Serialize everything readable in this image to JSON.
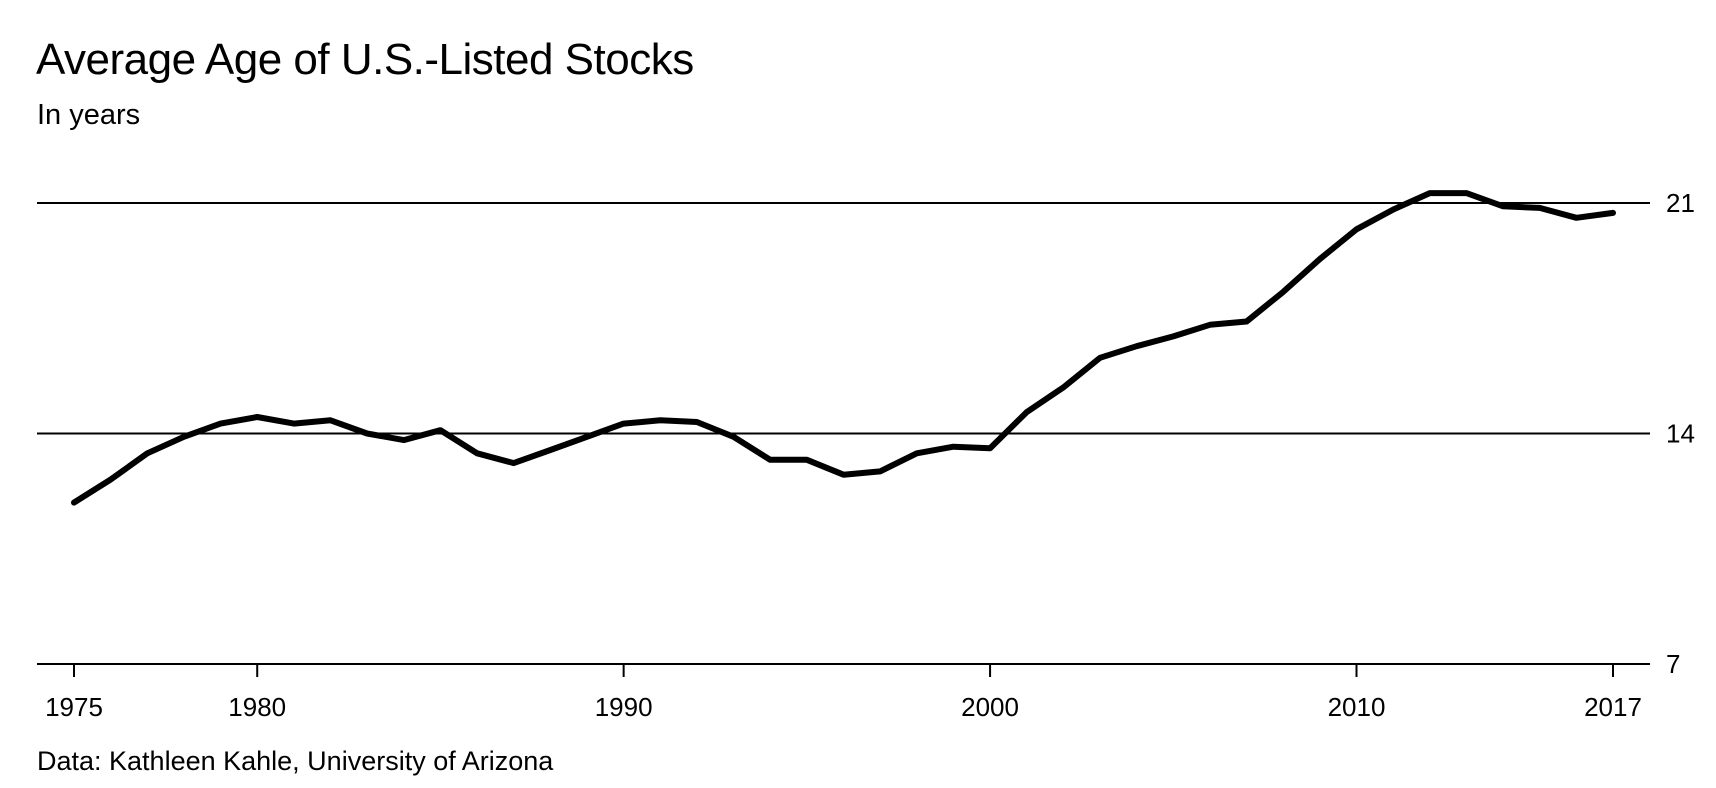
{
  "header": {
    "title": "Average Age of U.S.-Listed Stocks",
    "subtitle": "In years"
  },
  "footer": {
    "source": "Data: Kathleen Kahle, University of Arizona"
  },
  "colors": {
    "line": "#000000",
    "grid": "#000000",
    "background": "#ffffff"
  },
  "chart_data": {
    "type": "line",
    "title": "Average Age of U.S.-Listed Stocks",
    "subtitle": "In years",
    "xlabel": "",
    "ylabel": "",
    "xlim": [
      1975,
      2017
    ],
    "ylim": [
      7,
      21
    ],
    "x_ticks": [
      1975,
      1980,
      1990,
      2000,
      2010,
      2017
    ],
    "y_ticks": [
      21,
      14,
      7
    ],
    "y_axis_side": "right",
    "grid": "horizontal",
    "legend": "none",
    "series": [
      {
        "x": [
          1975,
          1976,
          1977,
          1978,
          1979,
          1980,
          1981,
          1982,
          1983,
          1984,
          1985,
          1986,
          1987,
          1988,
          1989,
          1990,
          1991,
          1992,
          1993,
          1994,
          1995,
          1996,
          1997,
          1998,
          1999,
          2000,
          2001,
          2002,
          2003,
          2004,
          2005,
          2006,
          2007,
          2008,
          2009,
          2010,
          2011,
          2012,
          2013,
          2014,
          2015,
          2016,
          2017
        ],
        "values": [
          11.9,
          12.6,
          13.4,
          13.9,
          14.3,
          14.5,
          14.3,
          14.4,
          14.0,
          13.8,
          14.1,
          13.4,
          13.1,
          13.5,
          13.9,
          14.3,
          14.4,
          14.35,
          13.9,
          13.2,
          13.2,
          12.75,
          12.85,
          13.4,
          13.6,
          13.55,
          14.65,
          15.4,
          16.3,
          16.65,
          16.95,
          17.3,
          17.4,
          18.3,
          19.3,
          20.2,
          20.8,
          21.3,
          21.3,
          20.9,
          20.85,
          20.55,
          20.7
        ]
      }
    ]
  }
}
